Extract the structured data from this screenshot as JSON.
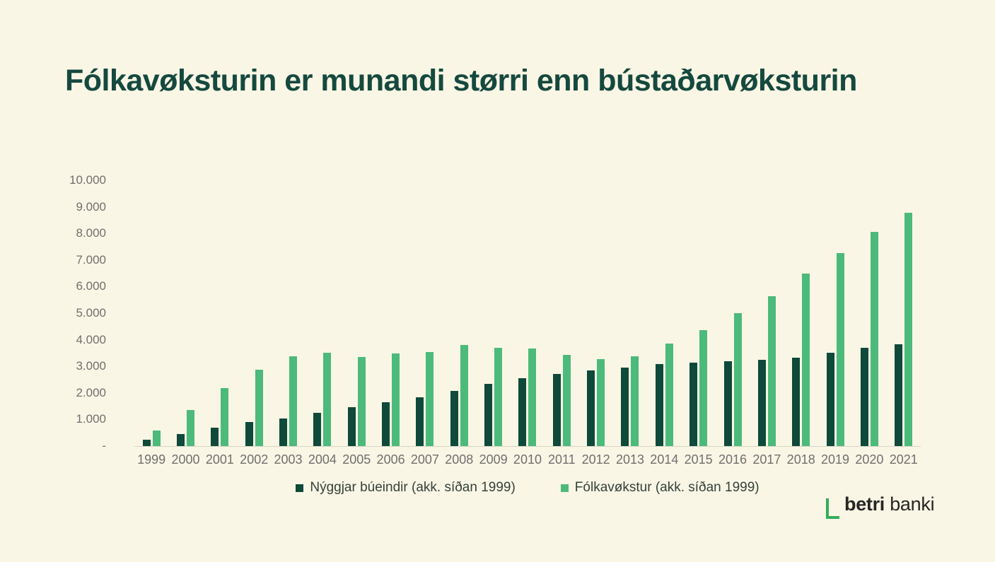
{
  "title": "Fólkavøksturin er munandi størri enn bústaðarvøksturin",
  "colors": {
    "background": "#FAF6E5",
    "title_text": "#15493F",
    "dark_bar": "#0E493A",
    "green_bar": "#4CBA7B",
    "axis_text": "#6F6F6F",
    "axis_line": "#D9D5C5",
    "legend_text": "#33413C",
    "logo_green": "#33AD5C",
    "logo_text": "#262626"
  },
  "chart_data": {
    "type": "bar",
    "title": "Fólkavøksturin er munandi størri enn bústaðarvøksturin",
    "categories": [
      "1999",
      "2000",
      "2001",
      "2002",
      "2003",
      "2004",
      "2005",
      "2006",
      "2007",
      "2008",
      "2009",
      "2010",
      "2011",
      "2012",
      "2013",
      "2014",
      "2015",
      "2016",
      "2017",
      "2018",
      "2019",
      "2020",
      "2021"
    ],
    "series": [
      {
        "name": "Nýggjar búeindir (akk. síðan 1999)",
        "color": "#0E493A",
        "values": [
          250,
          450,
          680,
          900,
          1050,
          1240,
          1450,
          1650,
          1830,
          2080,
          2340,
          2560,
          2710,
          2850,
          2960,
          3080,
          3130,
          3190,
          3250,
          3320,
          3510,
          3690,
          3820
        ]
      },
      {
        "name": "Fólkavøkstur (akk. síðan 1999)",
        "color": "#4CBA7B",
        "values": [
          580,
          1370,
          2170,
          2860,
          3370,
          3510,
          3340,
          3480,
          3540,
          3800,
          3700,
          3660,
          3420,
          3280,
          3390,
          3850,
          4370,
          5010,
          5640,
          6480,
          7250,
          8050,
          8790
        ]
      }
    ],
    "xlabel": "",
    "ylabel": "",
    "ylim": [
      0,
      10000
    ],
    "ytick_interval": 1000,
    "ytick_labels": [
      "-",
      "1.000",
      "2.000",
      "3.000",
      "4.000",
      "5.000",
      "6.000",
      "7.000",
      "8.000",
      "9.000",
      "10.000"
    ],
    "grid": false,
    "legend_position": "bottom"
  },
  "logo": {
    "bold": "betri",
    "regular": "banki"
  }
}
